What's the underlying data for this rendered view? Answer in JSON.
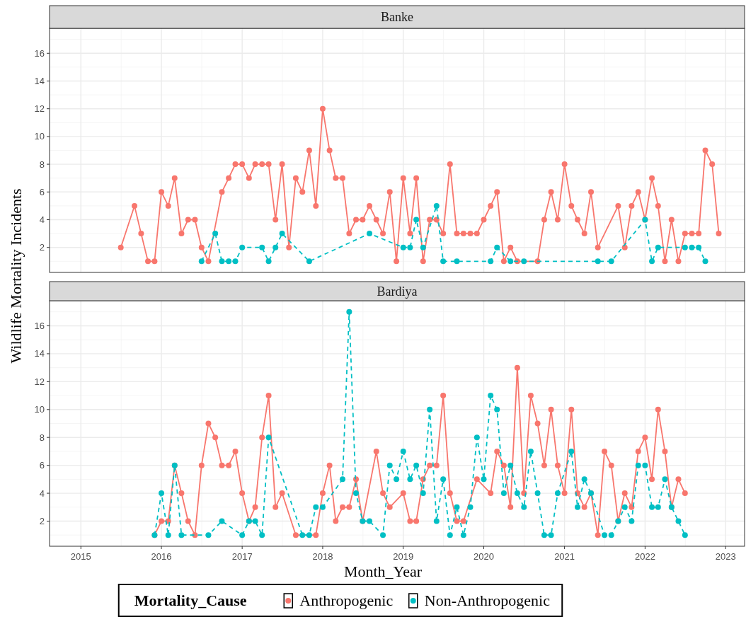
{
  "chart_data": [
    {
      "type": "line",
      "title": "Banke",
      "ylabel": "Wildlife Mortality Incidents",
      "xlim": [
        "2014-08-12",
        "2023-03-28"
      ],
      "ylim": [
        0.2,
        17.8
      ],
      "yticks": [
        2,
        4,
        6,
        8,
        10,
        12,
        14,
        16
      ],
      "tick_labels": "y",
      "grid": true,
      "marker": "circle",
      "xticks": [
        {
          "value": "2015-01-01",
          "label": null
        },
        {
          "value": "2016-01-01",
          "label": null
        },
        {
          "value": "2017-01-01",
          "label": null
        },
        {
          "value": "2018-01-01",
          "label": null
        },
        {
          "value": "2019-01-01",
          "label": null
        },
        {
          "value": "2020-01-01",
          "label": null
        },
        {
          "value": "2021-01-01",
          "label": null
        },
        {
          "value": "2022-01-01",
          "label": null
        },
        {
          "value": "2023-01-01",
          "label": null
        }
      ],
      "series": [
        {
          "color": "#f8766d",
          "line_style": "solid",
          "x": [
            "2015-07",
            "2015-09",
            "2015-10",
            "2015-11",
            "2015-12",
            "2016-01",
            "2016-02",
            "2016-03",
            "2016-04",
            "2016-05",
            "2016-06",
            "2016-07",
            "2016-08",
            "2016-10",
            "2016-11",
            "2016-12",
            "2017-01",
            "2017-02",
            "2017-03",
            "2017-04",
            "2017-05",
            "2017-06",
            "2017-07",
            "2017-08",
            "2017-09",
            "2017-10",
            "2017-11",
            "2017-12",
            "2018-01",
            "2018-02",
            "2018-03",
            "2018-04",
            "2018-05",
            "2018-06",
            "2018-07",
            "2018-08",
            "2018-09",
            "2018-10",
            "2018-11",
            "2018-12",
            "2019-01",
            "2019-02",
            "2019-03",
            "2019-04",
            "2019-05",
            "2019-06",
            "2019-07",
            "2019-08",
            "2019-09",
            "2019-10",
            "2019-11",
            "2019-12",
            "2020-01",
            "2020-02",
            "2020-03",
            "2020-04",
            "2020-05",
            "2020-06",
            "2020-09",
            "2020-10",
            "2020-11",
            "2020-12",
            "2021-01",
            "2021-02",
            "2021-03",
            "2021-04",
            "2021-05",
            "2021-06",
            "2021-09",
            "2021-10",
            "2021-11",
            "2021-12",
            "2022-01",
            "2022-02",
            "2022-03",
            "2022-04",
            "2022-05",
            "2022-06",
            "2022-07",
            "2022-08",
            "2022-09",
            "2022-10",
            "2022-11",
            "2022-12"
          ],
          "values": [
            2,
            5,
            3,
            1,
            1,
            6,
            5,
            7,
            3,
            4,
            4,
            2,
            1,
            6,
            7,
            8,
            8,
            7,
            8,
            8,
            8,
            4,
            8,
            2,
            7,
            6,
            9,
            5,
            12,
            9,
            7,
            7,
            3,
            4,
            4,
            5,
            4,
            3,
            6,
            1,
            7,
            3,
            7,
            1,
            4,
            4,
            3,
            8,
            3,
            3,
            3,
            3,
            4,
            5,
            6,
            1,
            2,
            1,
            1,
            4,
            6,
            4,
            8,
            5,
            4,
            3,
            6,
            2,
            5,
            2,
            5,
            6,
            4,
            7,
            5,
            1,
            4,
            1,
            3,
            3,
            3,
            9,
            8,
            3
          ]
        },
        {
          "color": "#00bfc4",
          "line_style": "dashed",
          "x": [
            "2016-07",
            "2016-09",
            "2016-10",
            "2016-11",
            "2016-12",
            "2017-01",
            "2017-04",
            "2017-05",
            "2017-06",
            "2017-07",
            "2017-11",
            "2018-08",
            "2019-01",
            "2019-02",
            "2019-03",
            "2019-04",
            "2019-06",
            "2019-07",
            "2019-09",
            "2020-02",
            "2020-03",
            "2020-05",
            "2020-07",
            "2021-06",
            "2021-08",
            "2022-01",
            "2022-02",
            "2022-03",
            "2022-07",
            "2022-08",
            "2022-09",
            "2022-10"
          ],
          "values": [
            1,
            3,
            1,
            1,
            1,
            2,
            2,
            1,
            2,
            3,
            1,
            3,
            2,
            2,
            4,
            2,
            5,
            1,
            1,
            1,
            2,
            1,
            1,
            1,
            1,
            4,
            1,
            2,
            2,
            2,
            2,
            1
          ]
        }
      ]
    },
    {
      "type": "line",
      "title": "Bardiya",
      "xlabel": "Month_Year",
      "legend_title": "Mortality_Cause",
      "legend": "bottom",
      "xlim": [
        "2014-08-12",
        "2023-03-28"
      ],
      "ylim": [
        0.2,
        17.8
      ],
      "yticks": [
        2,
        4,
        6,
        8,
        10,
        12,
        14,
        16
      ],
      "grid": true,
      "marker": "circle",
      "xticks": [
        {
          "value": "2015-01-01",
          "label": "2015"
        },
        {
          "value": "2016-01-01",
          "label": "2016"
        },
        {
          "value": "2017-01-01",
          "label": "2017"
        },
        {
          "value": "2018-01-01",
          "label": "2018"
        },
        {
          "value": "2019-01-01",
          "label": "2019"
        },
        {
          "value": "2020-01-01",
          "label": "2020"
        },
        {
          "value": "2021-01-01",
          "label": "2021"
        },
        {
          "value": "2022-01-01",
          "label": "2022"
        },
        {
          "value": "2023-01-01",
          "label": "2023"
        }
      ],
      "series": [
        {
          "name": "Anthropogenic",
          "color": "#f8766d",
          "line_style": "solid",
          "x": [
            "2015-12",
            "2016-01",
            "2016-02",
            "2016-03",
            "2016-04",
            "2016-05",
            "2016-06",
            "2016-07",
            "2016-08",
            "2016-09",
            "2016-10",
            "2016-11",
            "2016-12",
            "2017-01",
            "2017-02",
            "2017-03",
            "2017-04",
            "2017-05",
            "2017-06",
            "2017-07",
            "2017-09",
            "2017-12",
            "2018-01",
            "2018-02",
            "2018-03",
            "2018-04",
            "2018-05",
            "2018-06",
            "2018-07",
            "2018-09",
            "2018-10",
            "2018-11",
            "2019-01",
            "2019-02",
            "2019-03",
            "2019-04",
            "2019-05",
            "2019-06",
            "2019-07",
            "2019-08",
            "2019-09",
            "2019-10",
            "2019-12",
            "2020-02",
            "2020-03",
            "2020-04",
            "2020-05",
            "2020-06",
            "2020-07",
            "2020-08",
            "2020-09",
            "2020-10",
            "2020-11",
            "2020-12",
            "2021-01",
            "2021-02",
            "2021-03",
            "2021-04",
            "2021-05",
            "2021-06",
            "2021-07",
            "2021-08",
            "2021-09",
            "2021-10",
            "2021-11",
            "2021-12",
            "2022-01",
            "2022-02",
            "2022-03",
            "2022-04",
            "2022-05",
            "2022-06",
            "2022-07"
          ],
          "values": [
            1,
            2,
            2,
            6,
            4,
            2,
            1,
            6,
            9,
            8,
            6,
            6,
            7,
            4,
            2,
            3,
            8,
            11,
            3,
            4,
            1,
            1,
            4,
            6,
            2,
            3,
            3,
            5,
            2,
            7,
            4,
            3,
            4,
            2,
            2,
            5,
            6,
            6,
            11,
            4,
            2,
            2,
            5,
            4,
            7,
            6,
            3,
            13,
            4,
            11,
            9,
            6,
            10,
            6,
            4,
            10,
            4,
            3,
            4,
            1,
            7,
            6,
            2,
            4,
            3,
            7,
            8,
            5,
            10,
            7,
            3,
            5,
            4
          ]
        },
        {
          "name": "Non-Anthropogenic",
          "color": "#00bfc4",
          "line_style": "dashed",
          "x": [
            "2015-12",
            "2016-01",
            "2016-02",
            "2016-03",
            "2016-04",
            "2016-08",
            "2016-10",
            "2017-01",
            "2017-02",
            "2017-03",
            "2017-04",
            "2017-05",
            "2017-10",
            "2017-11",
            "2017-12",
            "2018-01",
            "2018-04",
            "2018-05",
            "2018-06",
            "2018-07",
            "2018-08",
            "2018-10",
            "2018-11",
            "2018-12",
            "2019-01",
            "2019-02",
            "2019-03",
            "2019-04",
            "2019-05",
            "2019-06",
            "2019-07",
            "2019-08",
            "2019-09",
            "2019-10",
            "2019-11",
            "2019-12",
            "2020-01",
            "2020-02",
            "2020-03",
            "2020-04",
            "2020-05",
            "2020-06",
            "2020-07",
            "2020-08",
            "2020-09",
            "2020-10",
            "2020-11",
            "2020-12",
            "2021-02",
            "2021-03",
            "2021-04",
            "2021-05",
            "2021-07",
            "2021-08",
            "2021-09",
            "2021-10",
            "2021-11",
            "2021-12",
            "2022-01",
            "2022-02",
            "2022-03",
            "2022-04",
            "2022-05",
            "2022-06",
            "2022-07"
          ],
          "values": [
            1,
            4,
            1,
            6,
            1,
            1,
            2,
            1,
            2,
            2,
            1,
            8,
            1,
            1,
            3,
            3,
            5,
            17,
            4,
            2,
            2,
            1,
            6,
            5,
            7,
            5,
            6,
            4,
            10,
            2,
            5,
            1,
            3,
            1,
            3,
            8,
            5,
            11,
            10,
            4,
            6,
            4,
            3,
            7,
            4,
            1,
            1,
            4,
            7,
            3,
            5,
            4,
            1,
            1,
            2,
            3,
            2,
            6,
            6,
            3,
            3,
            5,
            3,
            2,
            1
          ]
        }
      ]
    }
  ]
}
